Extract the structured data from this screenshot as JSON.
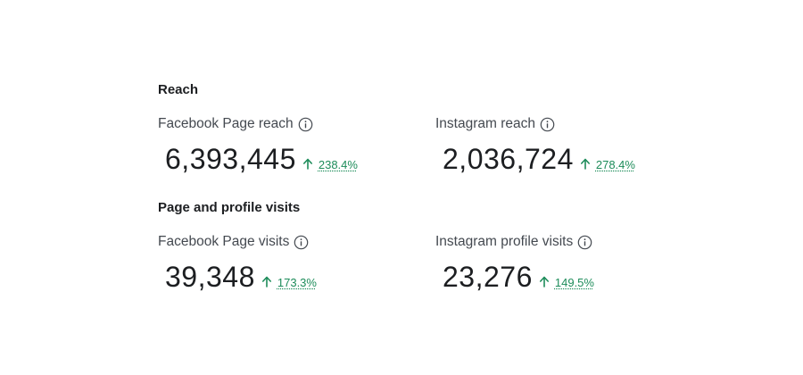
{
  "sections": [
    {
      "title": "Reach",
      "metrics": [
        {
          "label": "Facebook Page reach",
          "value": "6,393,445",
          "change": "238.4%"
        },
        {
          "label": "Instagram reach",
          "value": "2,036,724",
          "change": "278.4%"
        }
      ]
    },
    {
      "title": "Page and profile visits",
      "metrics": [
        {
          "label": "Facebook Page visits",
          "value": "39,348",
          "change": "173.3%"
        },
        {
          "label": "Instagram profile visits",
          "value": "23,276",
          "change": "149.5%"
        }
      ]
    }
  ],
  "icons": {
    "info": "info-icon",
    "trend": "arrow-up-icon"
  },
  "colors": {
    "positive_change": "#1d8c5a",
    "text_primary": "#1c1e21",
    "text_secondary": "#444950"
  }
}
